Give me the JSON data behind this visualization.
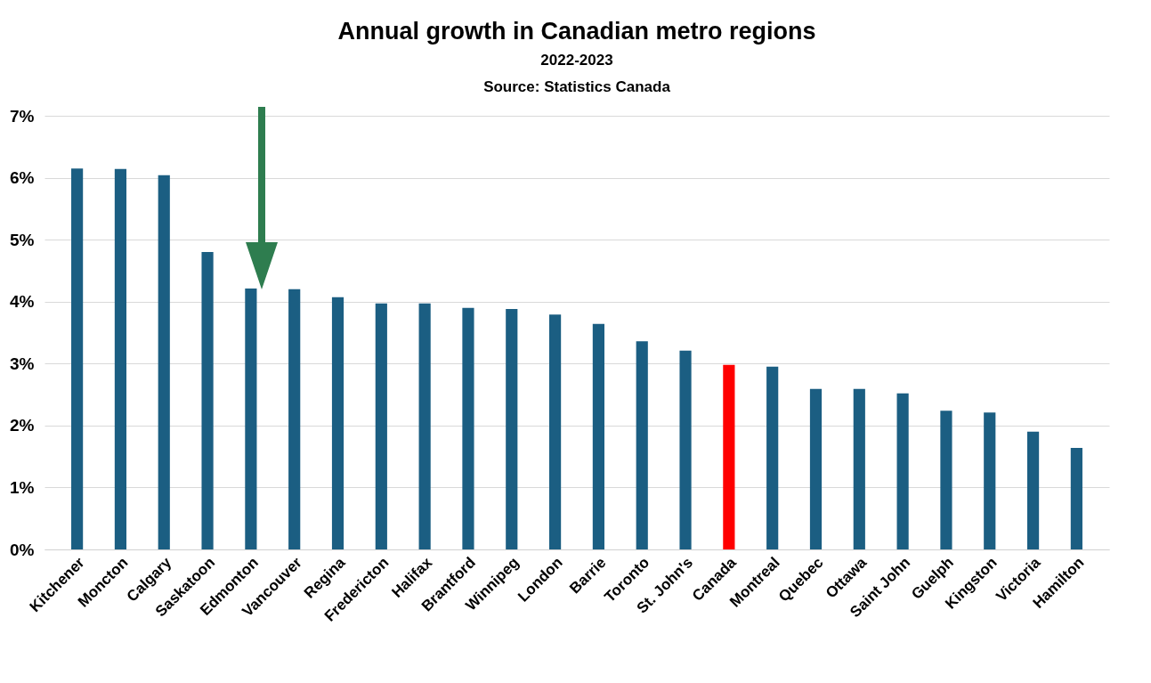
{
  "chart_data": {
    "type": "bar",
    "title": "Annual growth in Canadian metro regions",
    "subtitle": "2022-2023",
    "annotations": [
      "Source: Statistics Canada"
    ],
    "categories": [
      "Kitchener",
      "Moncton",
      "Calgary",
      "Saskatoon",
      "Edmonton",
      "Vancouver",
      "Regina",
      "Fredericton",
      "Halifax",
      "Brantford",
      "Winnipeg",
      "London",
      "Barrie",
      "Toronto",
      "St. John's",
      "Canada",
      "Montreal",
      "Quebec",
      "Ottawa",
      "Saint John",
      "Guelph",
      "Kingston",
      "Victoria",
      "Hamilton"
    ],
    "values": [
      6.15,
      6.14,
      6.04,
      4.8,
      4.21,
      4.2,
      4.07,
      3.97,
      3.97,
      3.9,
      3.88,
      3.79,
      3.64,
      3.36,
      3.21,
      2.98,
      2.95,
      2.59,
      2.59,
      2.52,
      2.24,
      2.21,
      1.9,
      1.64
    ],
    "colors": [
      "#1b5e82",
      "#1b5e82",
      "#1b5e82",
      "#1b5e82",
      "#1b5e82",
      "#1b5e82",
      "#1b5e82",
      "#1b5e82",
      "#1b5e82",
      "#1b5e82",
      "#1b5e82",
      "#1b5e82",
      "#1b5e82",
      "#1b5e82",
      "#1b5e82",
      "#ff0000",
      "#1b5e82",
      "#1b5e82",
      "#1b5e82",
      "#1b5e82",
      "#1b5e82",
      "#1b5e82",
      "#1b5e82",
      "#1b5e82"
    ],
    "ylim": [
      0,
      7
    ],
    "yticks": [
      {
        "value": 0,
        "label": "0%"
      },
      {
        "value": 1,
        "label": "1%"
      },
      {
        "value": 2,
        "label": "2%"
      },
      {
        "value": 3,
        "label": "3%"
      },
      {
        "value": 4,
        "label": "4%"
      },
      {
        "value": 5,
        "label": "5%"
      },
      {
        "value": 6,
        "label": "6%"
      },
      {
        "value": 7,
        "label": "7%"
      }
    ],
    "grid": "y"
  }
}
